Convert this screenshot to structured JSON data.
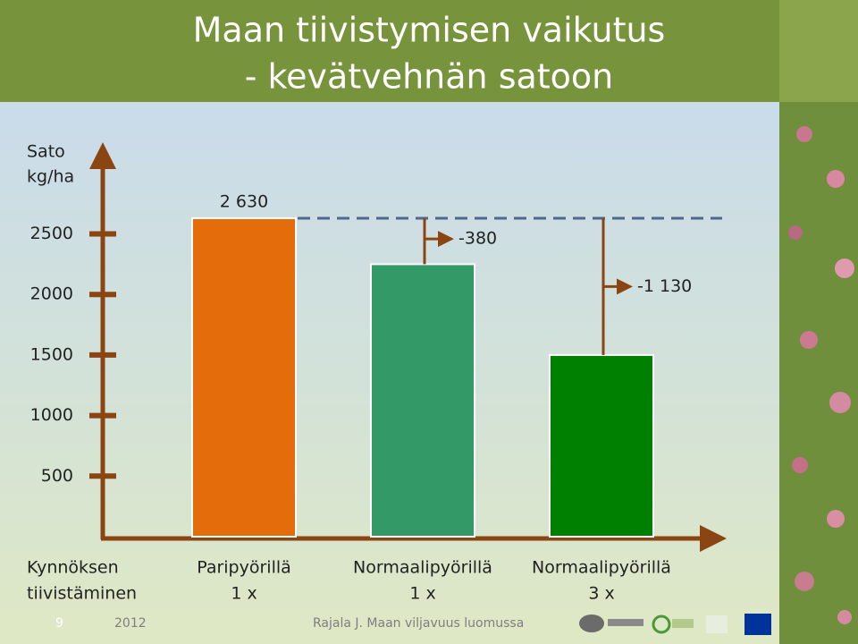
{
  "chart_data": {
    "type": "bar",
    "title": [
      "Maan tiivistymisen vaikutus",
      "- kevätvehnän satoon"
    ],
    "y_label": [
      "Sato",
      "kg/ha"
    ],
    "x_label": [
      "Kynnöksen",
      "tiivistäminen"
    ],
    "categories": [
      [
        "Paripyörillä",
        "1 x"
      ],
      [
        "Normaalipyörillä",
        "1 x"
      ],
      [
        "Normaalipyörillä",
        "3 x"
      ]
    ],
    "values": [
      2630,
      2250,
      1500
    ],
    "value_labels": [
      "2 630",
      null,
      null
    ],
    "colors": [
      "#e46c0a",
      "#339966",
      "#008000"
    ],
    "reductions": {
      "values": [
        null,
        -380,
        -1130
      ],
      "labels": [
        null,
        "-380",
        "-1 130"
      ]
    },
    "ylim": [
      0,
      3250
    ],
    "yticks": [
      500,
      1000,
      1500,
      2000,
      2500
    ],
    "footer": {
      "page": "9",
      "year": "2012",
      "source": "Rajala J. Maan viljavuus luomussa"
    }
  }
}
